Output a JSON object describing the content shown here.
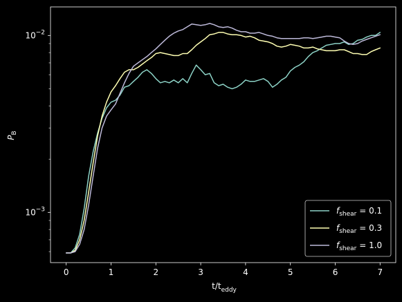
{
  "chart_data": {
    "type": "line",
    "title": "",
    "xlabel": "t/t",
    "xlabel_sub": "eddy",
    "ylabel": "P",
    "ylabel_sub": "B",
    "xlim": [
      -0.35,
      7.35
    ],
    "ylim": [
      0.00052,
      0.0145
    ],
    "yscale": "log",
    "grid": false,
    "legend_position": "lower-right",
    "background": "#000000",
    "axis_color": "#ffffff",
    "x_ticks": [
      {
        "value": 0,
        "label": "0"
      },
      {
        "value": 1,
        "label": "1"
      },
      {
        "value": 2,
        "label": "2"
      },
      {
        "value": 3,
        "label": "3"
      },
      {
        "value": 4,
        "label": "4"
      },
      {
        "value": 5,
        "label": "5"
      },
      {
        "value": 6,
        "label": "6"
      },
      {
        "value": 7,
        "label": "7"
      }
    ],
    "y_major_ticks": [
      {
        "value": 0.001,
        "base": "10",
        "exp": "−3"
      },
      {
        "value": 0.01,
        "base": "10",
        "exp": "−2"
      }
    ],
    "y_minor_ticks": [
      0.0006,
      0.0007,
      0.0008,
      0.0009,
      0.002,
      0.003,
      0.004,
      0.005,
      0.006,
      0.007,
      0.008,
      0.009
    ],
    "series": [
      {
        "name": "0.1",
        "legend_prefix": "f",
        "legend_sub": "shear",
        "legend_eq": " = 0.1",
        "color": "#8dd3c7",
        "x": [
          0,
          0.1,
          0.2,
          0.3,
          0.4,
          0.5,
          0.6,
          0.7,
          0.8,
          0.9,
          1.0,
          1.1,
          1.2,
          1.3,
          1.4,
          1.5,
          1.6,
          1.7,
          1.8,
          1.9,
          2.0,
          2.1,
          2.2,
          2.3,
          2.4,
          2.5,
          2.6,
          2.7,
          2.8,
          2.9,
          3.0,
          3.1,
          3.2,
          3.3,
          3.4,
          3.5,
          3.6,
          3.7,
          3.8,
          3.9,
          4.0,
          4.1,
          4.2,
          4.3,
          4.4,
          4.5,
          4.6,
          4.7,
          4.8,
          4.9,
          5.0,
          5.1,
          5.2,
          5.3,
          5.4,
          5.5,
          5.6,
          5.7,
          5.8,
          5.9,
          6.0,
          6.1,
          6.2,
          6.3,
          6.4,
          6.5,
          6.6,
          6.7,
          6.8,
          6.9,
          7.0
        ],
        "y": [
          0.00059,
          0.00059,
          0.00063,
          0.00075,
          0.00105,
          0.0016,
          0.0022,
          0.0028,
          0.0034,
          0.0039,
          0.0042,
          0.0043,
          0.0046,
          0.0051,
          0.0052,
          0.0055,
          0.0058,
          0.0062,
          0.0064,
          0.0061,
          0.0057,
          0.0054,
          0.0055,
          0.0054,
          0.0056,
          0.0054,
          0.0057,
          0.0054,
          0.0061,
          0.0068,
          0.0064,
          0.006,
          0.0061,
          0.0054,
          0.0052,
          0.0053,
          0.0051,
          0.005,
          0.0051,
          0.0053,
          0.0056,
          0.0055,
          0.0055,
          0.0056,
          0.0057,
          0.0055,
          0.0051,
          0.0053,
          0.0056,
          0.0058,
          0.0063,
          0.0066,
          0.0068,
          0.0071,
          0.0076,
          0.008,
          0.0082,
          0.0085,
          0.0088,
          0.0089,
          0.009,
          0.009,
          0.0092,
          0.0089,
          0.009,
          0.0094,
          0.0095,
          0.0098,
          0.01,
          0.01,
          0.0104
        ]
      },
      {
        "name": "0.3",
        "legend_prefix": "f",
        "legend_sub": "shear",
        "legend_eq": " = 0.3",
        "color": "#ffffb3",
        "x": [
          0,
          0.1,
          0.2,
          0.3,
          0.4,
          0.5,
          0.6,
          0.7,
          0.8,
          0.9,
          1.0,
          1.1,
          1.2,
          1.3,
          1.4,
          1.5,
          1.6,
          1.7,
          1.8,
          1.9,
          2.0,
          2.1,
          2.2,
          2.3,
          2.4,
          2.5,
          2.6,
          2.7,
          2.8,
          2.9,
          3.0,
          3.1,
          3.2,
          3.3,
          3.4,
          3.5,
          3.6,
          3.7,
          3.8,
          3.9,
          4.0,
          4.1,
          4.2,
          4.3,
          4.4,
          4.5,
          4.6,
          4.7,
          4.8,
          4.9,
          5.0,
          5.1,
          5.2,
          5.3,
          5.4,
          5.5,
          5.6,
          5.7,
          5.8,
          5.9,
          6.0,
          6.1,
          6.2,
          6.3,
          6.4,
          6.5,
          6.6,
          6.7,
          6.8,
          6.9,
          7.0
        ],
        "y": [
          0.00059,
          0.00059,
          0.00061,
          0.0007,
          0.0009,
          0.0013,
          0.0019,
          0.0027,
          0.0035,
          0.0042,
          0.0048,
          0.0052,
          0.0057,
          0.0062,
          0.0064,
          0.0064,
          0.0066,
          0.0069,
          0.0072,
          0.0075,
          0.0079,
          0.008,
          0.0079,
          0.0078,
          0.0077,
          0.0077,
          0.0079,
          0.0079,
          0.0083,
          0.0088,
          0.0092,
          0.0096,
          0.0101,
          0.0102,
          0.0104,
          0.0104,
          0.0102,
          0.0101,
          0.0101,
          0.01,
          0.0098,
          0.0099,
          0.0097,
          0.0094,
          0.0093,
          0.0092,
          0.009,
          0.0087,
          0.0086,
          0.0087,
          0.0089,
          0.0088,
          0.0087,
          0.0085,
          0.0085,
          0.0086,
          0.0084,
          0.0083,
          0.0082,
          0.0082,
          0.0082,
          0.0083,
          0.0083,
          0.0081,
          0.0079,
          0.0079,
          0.0078,
          0.0078,
          0.0081,
          0.0083,
          0.0085
        ]
      },
      {
        "name": "1.0",
        "legend_prefix": "f",
        "legend_sub": "shear",
        "legend_eq": " = 1.0",
        "color": "#bebada",
        "x": [
          0,
          0.1,
          0.2,
          0.3,
          0.4,
          0.5,
          0.6,
          0.7,
          0.8,
          0.9,
          1.0,
          1.1,
          1.2,
          1.3,
          1.4,
          1.5,
          1.6,
          1.7,
          1.8,
          1.9,
          2.0,
          2.1,
          2.2,
          2.3,
          2.4,
          2.5,
          2.6,
          2.7,
          2.8,
          2.9,
          3.0,
          3.1,
          3.2,
          3.3,
          3.4,
          3.5,
          3.6,
          3.7,
          3.8,
          3.9,
          4.0,
          4.1,
          4.2,
          4.3,
          4.4,
          4.5,
          4.6,
          4.7,
          4.8,
          4.9,
          5.0,
          5.1,
          5.2,
          5.3,
          5.4,
          5.5,
          5.6,
          5.7,
          5.8,
          5.9,
          6.0,
          6.1,
          6.2,
          6.3,
          6.4,
          6.5,
          6.6,
          6.7,
          6.8,
          6.9,
          7.0
        ],
        "y": [
          0.00059,
          0.00059,
          0.0006,
          0.00066,
          0.0008,
          0.0011,
          0.0016,
          0.0023,
          0.003,
          0.0035,
          0.0038,
          0.0041,
          0.0047,
          0.0054,
          0.0061,
          0.0067,
          0.007,
          0.0073,
          0.0076,
          0.008,
          0.0084,
          0.0089,
          0.0094,
          0.0099,
          0.0103,
          0.0106,
          0.0108,
          0.0112,
          0.0116,
          0.0115,
          0.0114,
          0.0115,
          0.0117,
          0.0115,
          0.0112,
          0.0111,
          0.0112,
          0.011,
          0.0107,
          0.0105,
          0.0105,
          0.0103,
          0.0103,
          0.0104,
          0.0102,
          0.01,
          0.0099,
          0.0097,
          0.0096,
          0.0096,
          0.0096,
          0.0096,
          0.0096,
          0.0097,
          0.0097,
          0.0096,
          0.0097,
          0.0098,
          0.0099,
          0.0099,
          0.0098,
          0.0097,
          0.0093,
          0.009,
          0.0089,
          0.009,
          0.0093,
          0.0095,
          0.0097,
          0.0099,
          0.0101
        ]
      }
    ]
  }
}
